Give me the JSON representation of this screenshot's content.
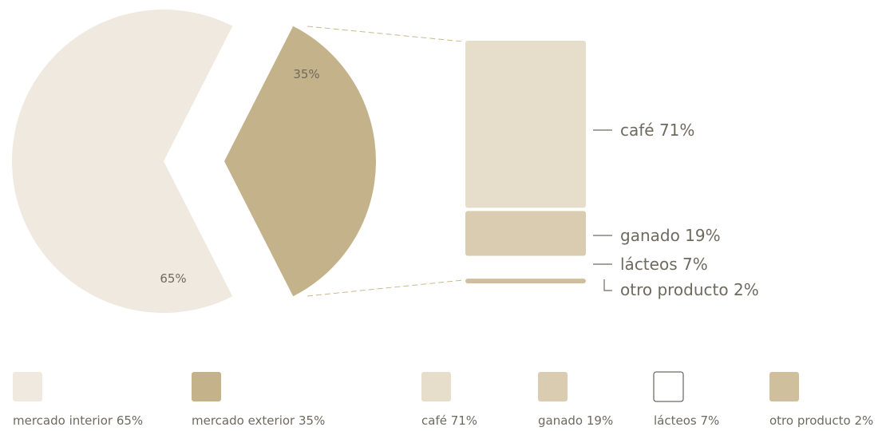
{
  "chart_data": [
    {
      "type": "pie",
      "slices": [
        {
          "name": "mercado interior",
          "value": 65,
          "label": "65%",
          "color": "#f0e9df"
        },
        {
          "name": "mercado exterior",
          "value": 35,
          "label": "35%",
          "color": "#c4b28a"
        }
      ],
      "legend": [
        "mercado interior 65%",
        "mercado exterior 35%"
      ]
    },
    {
      "type": "bar",
      "stacked": true,
      "series": [
        {
          "name": "café",
          "value": 71,
          "label": "café 71%",
          "color": "#e6decb"
        },
        {
          "name": "ganado",
          "value": 19,
          "label": "ganado 19%",
          "color": "#d9ccb0"
        },
        {
          "name": "lácteos",
          "value": 7,
          "label": "lácteos 7%",
          "color": "#ffffff"
        },
        {
          "name": "otro producto",
          "value": 2,
          "label": "otro producto 2%",
          "color": "#cfbf9c"
        }
      ],
      "legend": [
        "café 71%",
        "ganado 19%",
        "lácteos 7%",
        "otro producto 2%"
      ]
    }
  ]
}
